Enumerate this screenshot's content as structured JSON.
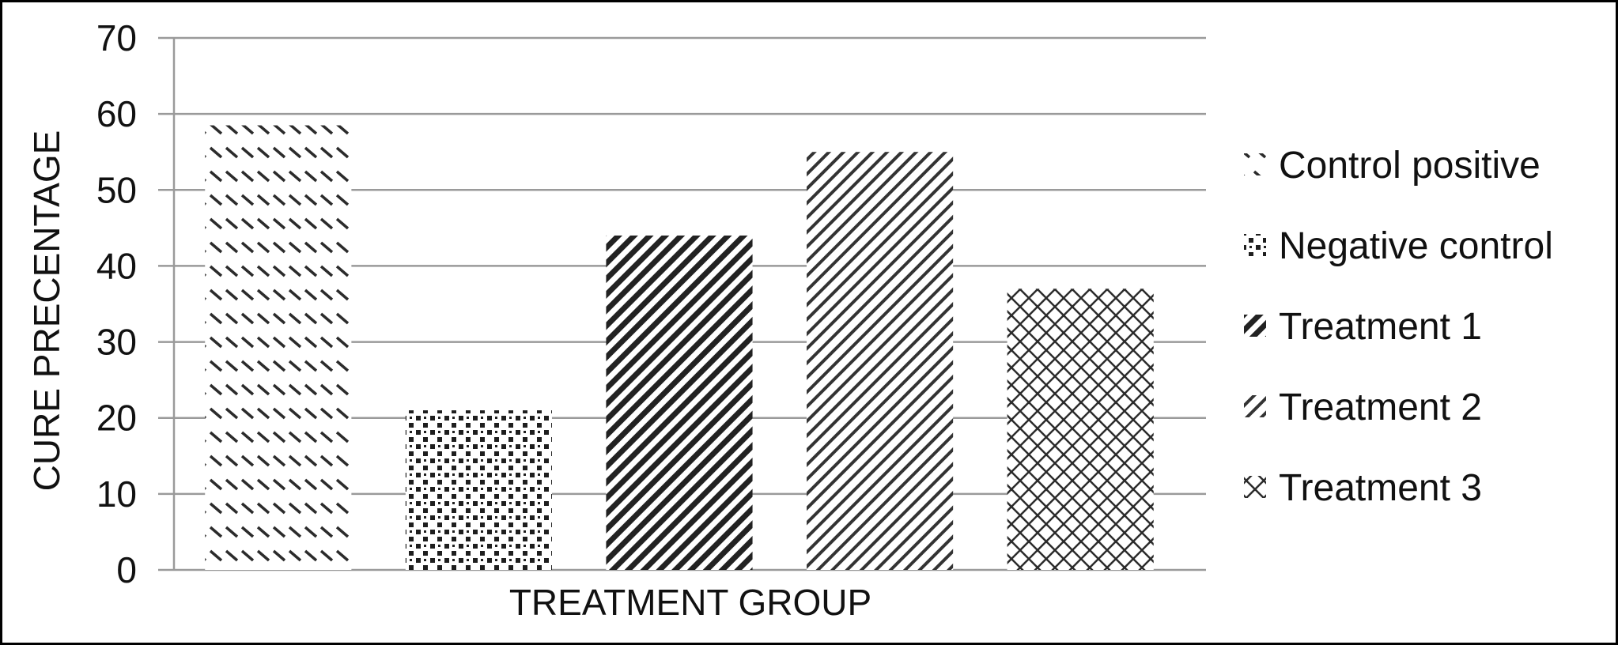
{
  "chart_data": {
    "type": "bar",
    "title": "",
    "xlabel": "TREATMENT GROUP",
    "ylabel": "CURE PRECENTAGE",
    "ylim": [
      0,
      70
    ],
    "yticks": [
      0,
      10,
      20,
      30,
      40,
      50,
      60,
      70
    ],
    "grid": true,
    "legend_position": "right",
    "series": [
      {
        "name": "Control positive",
        "values": [
          58.5
        ],
        "pattern": "short-dash-diagonal"
      },
      {
        "name": "Negative control",
        "values": [
          21
        ],
        "pattern": "dots"
      },
      {
        "name": "Treatment 1",
        "values": [
          44
        ],
        "pattern": "dense-diagonal"
      },
      {
        "name": "Treatment 2",
        "values": [
          55
        ],
        "pattern": "light-diagonal"
      },
      {
        "name": "Treatment 3",
        "values": [
          37
        ],
        "pattern": "crosshatch"
      }
    ],
    "colors": {
      "grid": "#9a9a9a",
      "ink": "#2b2b2b",
      "background": "#ffffff"
    }
  }
}
